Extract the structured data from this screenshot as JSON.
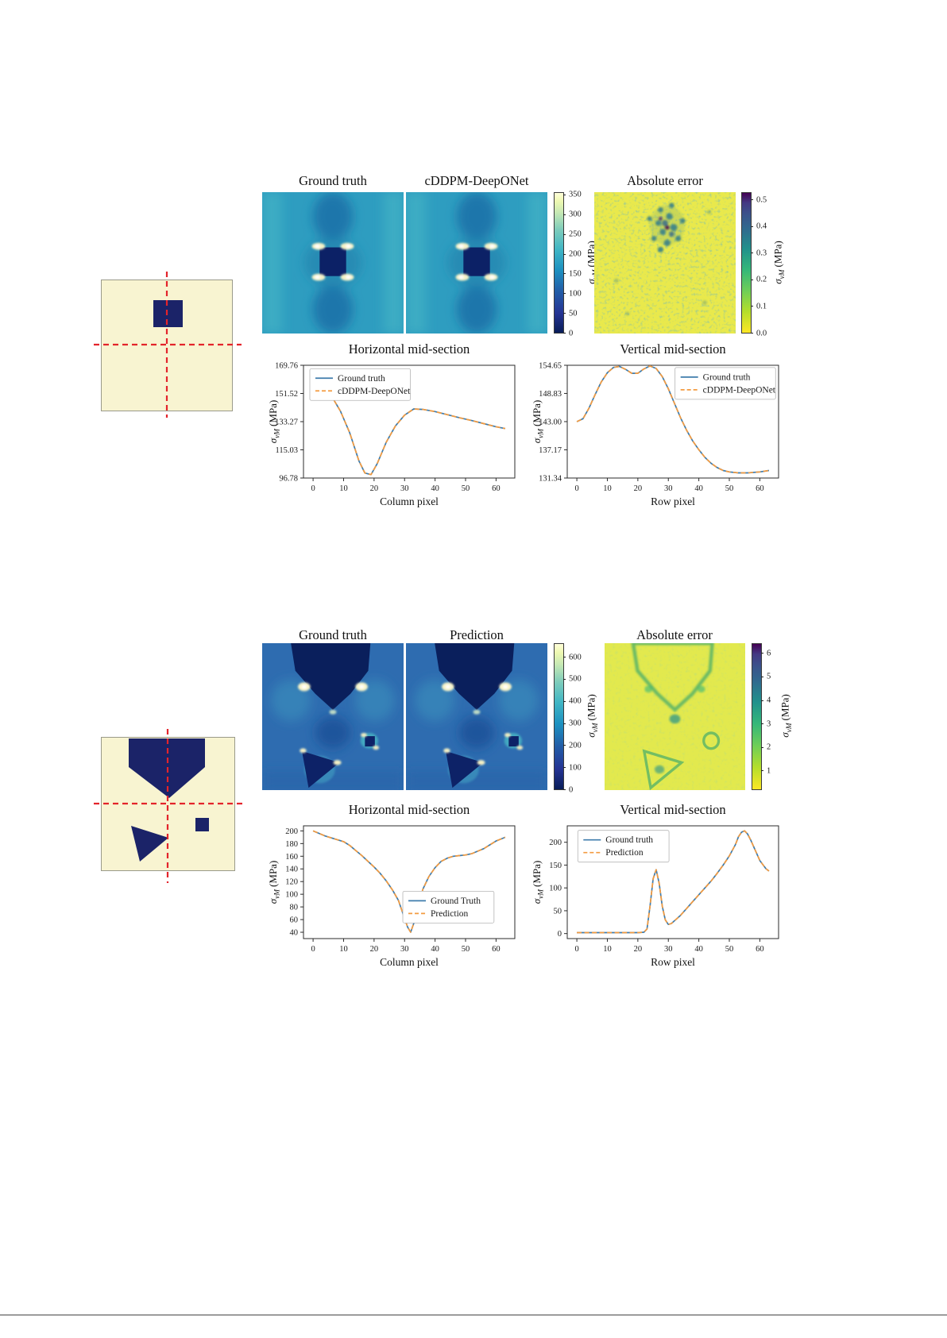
{
  "axis_label": {
    "sigma": "σ",
    "sub": "vM",
    "unit": "(MPa)"
  },
  "figure1": {
    "panel_titles": {
      "ground_truth": "Ground truth",
      "prediction": "cDDPM-DeepONet",
      "error": "Absolute error"
    }
  },
  "figure2": {
    "panel_titles": {
      "ground_truth": "Ground truth",
      "prediction": "Prediction",
      "error": "Absolute error"
    }
  },
  "colorbars": [
    {
      "id": "cb-stress-1",
      "label": "σvM (MPa)",
      "range": [
        0,
        358
      ],
      "ticks": [
        0,
        50,
        100,
        150,
        200,
        250,
        300,
        350
      ],
      "labels": [
        "0",
        "50",
        "100",
        "150",
        "200",
        "250",
        "300",
        "350"
      ]
    },
    {
      "id": "cb-error-1",
      "label": "σvM (MPa)",
      "range": [
        0,
        0.53
      ],
      "ticks": [
        0,
        0.1,
        0.2,
        0.3,
        0.4,
        0.5
      ],
      "labels": [
        "0.0",
        "0.1",
        "0.2",
        "0.3",
        "0.4",
        "0.5"
      ]
    },
    {
      "id": "cb-stress-2",
      "label": "σvM (MPa)",
      "range": [
        0,
        665
      ],
      "ticks": [
        0,
        100,
        200,
        300,
        400,
        500,
        600
      ],
      "labels": [
        "0",
        "100",
        "200",
        "300",
        "400",
        "500",
        "600"
      ]
    },
    {
      "id": "cb-error-2",
      "label": "σvM (MPa)",
      "range": [
        0.2,
        6.45
      ],
      "ticks": [
        1,
        2,
        3,
        4,
        5,
        6
      ],
      "labels": [
        "1",
        "2",
        "3",
        "4",
        "5",
        "6"
      ]
    }
  ],
  "chart_data": [
    {
      "type": "line",
      "title": "Horizontal mid-section",
      "xlabel": "Column pixel",
      "ylabel": "σvM (MPa)",
      "xlim": [
        -3.15,
        66.15
      ],
      "ylim": [
        96.78,
        169.76
      ],
      "xticks": [
        0,
        10,
        20,
        30,
        40,
        50,
        60
      ],
      "xtick_labels": [
        "0",
        "10",
        "20",
        "30",
        "40",
        "50",
        "60"
      ],
      "yticks": [
        96.78,
        115.03,
        133.27,
        151.52,
        169.76
      ],
      "ytick_labels": [
        "96.78",
        "115.03",
        "133.27",
        "151.52",
        "169.76"
      ],
      "legend": {
        "x": 0.03,
        "y": 0.03
      },
      "x": [
        0,
        3,
        6,
        9,
        12,
        15,
        17,
        19,
        21,
        24,
        27,
        30,
        33,
        36,
        40,
        44,
        48,
        52,
        56,
        60,
        63
      ],
      "series": [
        {
          "name": "Ground truth",
          "color": "#3f7cac",
          "dash": "solid",
          "values": [
            160.5,
            157,
            150,
            140,
            126,
            108,
            100,
            99,
            106,
            120,
            130.5,
            137.5,
            141.5,
            141.2,
            139.8,
            137.8,
            135.8,
            134,
            132,
            130,
            128.8
          ]
        },
        {
          "name": "cDDPM-DeepONet",
          "color": "#f39b40",
          "dash": "dashed",
          "values": [
            160.5,
            157,
            150,
            140,
            126,
            108,
            100,
            99,
            106,
            120,
            130.5,
            137.5,
            141.5,
            141.2,
            139.8,
            137.8,
            135.8,
            134,
            132,
            130,
            128.8
          ]
        }
      ]
    },
    {
      "type": "line",
      "title": "Vertical mid-section",
      "xlabel": "Row pixel",
      "ylabel": "σvM (MPa)",
      "xlim": [
        -3.15,
        66.15
      ],
      "ylim": [
        131.34,
        154.65
      ],
      "xticks": [
        0,
        10,
        20,
        30,
        40,
        50,
        60
      ],
      "xtick_labels": [
        "0",
        "10",
        "20",
        "30",
        "40",
        "50",
        "60"
      ],
      "yticks": [
        131.34,
        137.17,
        143.0,
        148.83,
        154.65
      ],
      "ytick_labels": [
        "131.34",
        "137.17",
        "143.00",
        "148.83",
        "154.65"
      ],
      "legend": {
        "x": 0.51,
        "y": 0.02
      },
      "x": [
        0,
        2,
        4,
        6,
        8,
        10,
        12,
        14,
        16,
        18,
        20,
        22,
        24,
        26,
        28,
        30,
        32,
        34,
        36,
        38,
        40,
        42,
        44,
        46,
        48,
        50,
        53,
        56,
        60,
        63
      ],
      "series": [
        {
          "name": "Ground truth",
          "color": "#3f7cac",
          "dash": "solid",
          "values": [
            143,
            143.6,
            145.8,
            148.6,
            151.2,
            153.1,
            154.2,
            154.4,
            153.8,
            153,
            153,
            153.9,
            154.5,
            154,
            152.3,
            149.8,
            146.8,
            143.8,
            141.2,
            139,
            137.2,
            135.6,
            134.4,
            133.5,
            132.9,
            132.6,
            132.4,
            132.4,
            132.6,
            132.9
          ]
        },
        {
          "name": "cDDPM-DeepONet",
          "color": "#f39b40",
          "dash": "dashed",
          "values": [
            143,
            143.6,
            145.8,
            148.6,
            151.2,
            153.1,
            154.2,
            154.4,
            153.8,
            153,
            153,
            153.9,
            154.5,
            154,
            152.3,
            149.8,
            146.8,
            143.8,
            141.2,
            139,
            137.2,
            135.6,
            134.4,
            133.5,
            132.9,
            132.6,
            132.4,
            132.4,
            132.6,
            132.9
          ]
        }
      ]
    },
    {
      "type": "line",
      "title": "Horizontal mid-section",
      "xlabel": "Column pixel",
      "ylabel": "σvM (MPa)",
      "xlim": [
        -3.15,
        66.15
      ],
      "ylim": [
        30,
        208
      ],
      "xticks": [
        0,
        10,
        20,
        30,
        40,
        50,
        60
      ],
      "xtick_labels": [
        "0",
        "10",
        "20",
        "30",
        "40",
        "50",
        "60"
      ],
      "yticks": [
        40,
        60,
        80,
        100,
        120,
        140,
        160,
        180,
        200
      ],
      "ytick_labels": [
        "40",
        "60",
        "80",
        "100",
        "120",
        "140",
        "160",
        "180",
        "200"
      ],
      "legend": {
        "x": 0.47,
        "y": 0.58
      },
      "x": [
        0,
        2,
        4,
        6,
        8,
        10,
        12,
        14,
        16,
        18,
        20,
        22,
        24,
        26,
        28,
        30,
        31,
        32,
        33,
        34,
        36,
        38,
        40,
        42,
        44,
        46,
        48,
        50,
        52,
        54,
        56,
        58,
        60,
        62,
        63
      ],
      "series": [
        {
          "name": "Ground Truth",
          "color": "#3f7cac",
          "dash": "solid",
          "values": [
            200,
            196,
            192,
            189,
            186,
            183,
            177,
            169,
            161,
            152,
            143,
            133,
            121,
            107,
            90,
            62,
            48,
            40,
            54,
            74,
            108,
            128,
            142,
            152,
            157,
            160,
            161,
            162,
            164,
            168,
            172,
            178,
            184,
            188,
            190
          ]
        },
        {
          "name": "Prediction",
          "color": "#f39b40",
          "dash": "dashed",
          "values": [
            200,
            196,
            192,
            189,
            186,
            183,
            177,
            169,
            161,
            152,
            143,
            133,
            121,
            107,
            90,
            62,
            48,
            40,
            54,
            74,
            108,
            128,
            142,
            152,
            157,
            160,
            161,
            162,
            164,
            168,
            172,
            178,
            184,
            188,
            190
          ]
        }
      ]
    },
    {
      "type": "line",
      "title": "Vertical mid-section",
      "xlabel": "Row pixel",
      "ylabel": "σvM (MPa)",
      "xlim": [
        -3.15,
        66.15
      ],
      "ylim": [
        -11,
        236
      ],
      "xticks": [
        0,
        10,
        20,
        30,
        40,
        50,
        60
      ],
      "xtick_labels": [
        "0",
        "10",
        "20",
        "30",
        "40",
        "50",
        "60"
      ],
      "yticks": [
        0,
        50,
        100,
        150,
        200
      ],
      "ytick_labels": [
        "0",
        "50",
        "100",
        "150",
        "200"
      ],
      "legend": {
        "x": 0.05,
        "y": 0.04
      },
      "x": [
        0,
        4,
        8,
        12,
        16,
        20,
        22,
        23,
        24,
        25,
        26,
        27,
        28,
        29,
        30,
        31,
        32,
        34,
        36,
        38,
        40,
        42,
        44,
        46,
        48,
        50,
        52,
        53,
        54,
        55,
        56,
        57,
        58,
        60,
        62,
        63
      ],
      "series": [
        {
          "name": "Ground truth",
          "color": "#3f7cac",
          "dash": "solid",
          "values": [
            2,
            2,
            2,
            2,
            2,
            2,
            3,
            10,
            60,
            120,
            140,
            110,
            60,
            30,
            20,
            22,
            28,
            40,
            55,
            70,
            85,
            100,
            115,
            132,
            150,
            170,
            195,
            212,
            222,
            225,
            218,
            205,
            190,
            160,
            142,
            137
          ]
        },
        {
          "name": "Prediction",
          "color": "#f39b40",
          "dash": "dashed",
          "values": [
            2,
            2,
            2,
            2,
            2,
            2,
            3,
            10,
            60,
            120,
            140,
            110,
            60,
            30,
            20,
            22,
            28,
            40,
            55,
            70,
            85,
            100,
            115,
            132,
            150,
            170,
            195,
            212,
            222,
            225,
            218,
            205,
            190,
            160,
            142,
            137
          ]
        }
      ]
    }
  ]
}
